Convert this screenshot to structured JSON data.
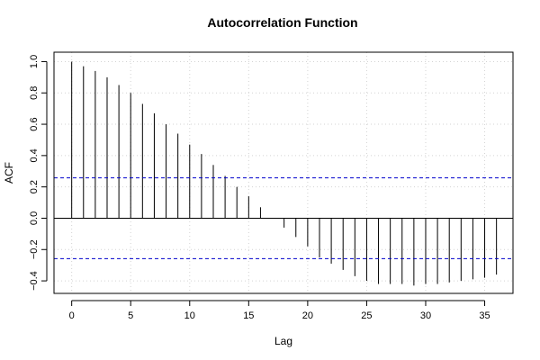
{
  "chart_data": {
    "type": "bar",
    "title": "Autocorrelation Function",
    "xlabel": "Lag",
    "ylabel": "ACF",
    "xlim": [
      -1.5,
      37.4
    ],
    "ylim": [
      -0.48,
      1.06
    ],
    "x_ticks": [
      0,
      5,
      10,
      15,
      20,
      25,
      30,
      35
    ],
    "y_ticks": [
      -0.4,
      -0.2,
      0.0,
      0.2,
      0.4,
      0.6,
      0.8,
      1.0
    ],
    "x_tick_labels": [
      "0",
      "5",
      "10",
      "15",
      "20",
      "25",
      "30",
      "35"
    ],
    "y_tick_labels": [
      "−0.4",
      "−0.2",
      "0.0",
      "0.2",
      "0.4",
      "0.6",
      "0.8",
      "1.0"
    ],
    "grid": true,
    "lags": [
      0,
      1,
      2,
      3,
      4,
      5,
      6,
      7,
      8,
      9,
      10,
      11,
      12,
      13,
      14,
      15,
      16,
      17,
      18,
      19,
      20,
      21,
      22,
      23,
      24,
      25,
      26,
      27,
      28,
      29,
      30,
      31,
      32,
      33,
      34,
      35,
      36
    ],
    "values": [
      1.0,
      0.97,
      0.94,
      0.9,
      0.85,
      0.8,
      0.73,
      0.67,
      0.6,
      0.54,
      0.47,
      0.41,
      0.34,
      0.27,
      0.2,
      0.14,
      0.07,
      0.0,
      -0.06,
      -0.12,
      -0.18,
      -0.25,
      -0.29,
      -0.33,
      -0.37,
      -0.4,
      -0.42,
      -0.42,
      -0.42,
      -0.43,
      -0.42,
      -0.42,
      -0.41,
      -0.4,
      -0.39,
      -0.38,
      -0.36
    ],
    "confidence_bounds": [
      0.258,
      -0.258
    ],
    "colors": {
      "bars": "#000000",
      "confidence": "#0000cc",
      "grid": "#d3d3d3",
      "axes": "#000000"
    }
  }
}
